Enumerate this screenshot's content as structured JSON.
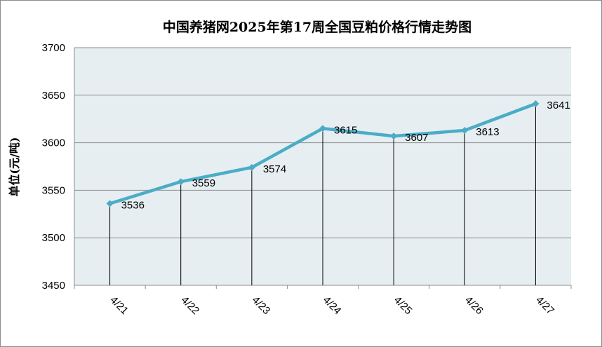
{
  "chart_data": {
    "type": "line",
    "title": "中国养猪网2025年第17周全国豆粕价格行情走势图",
    "ylabel": "单位(元/吨)",
    "xlabel": "",
    "categories": [
      "4/21",
      "4/22",
      "4/23",
      "4/24",
      "4/25",
      "4/26",
      "4/27"
    ],
    "values": [
      3536,
      3559,
      3574,
      3615,
      3607,
      3613,
      3641
    ],
    "data_labels": [
      "3536",
      "3559",
      "3574",
      "3615",
      "3607",
      "3613",
      "3641"
    ],
    "ylim": [
      3450,
      3700
    ],
    "yticks": [
      "3450",
      "3500",
      "3550",
      "3600",
      "3650",
      "3700"
    ],
    "grid": true,
    "drop_lines": true,
    "colors": {
      "line": "#4BACC6",
      "plot_bg": "#E6EEF2",
      "grid": "#8c8c8c",
      "drop_line": "#000000"
    }
  }
}
